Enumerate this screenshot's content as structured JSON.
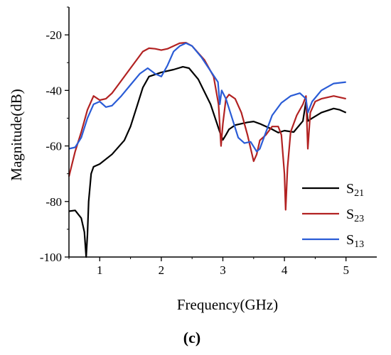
{
  "chart_data": {
    "type": "line",
    "xlabel": "Frequency(GHz)",
    "ylabel": "Magnitude(dB)",
    "panel_label": "(c)",
    "xlim": [
      0.5,
      5.5
    ],
    "ylim": [
      -100,
      -10
    ],
    "xticks": [
      1,
      2,
      3,
      4,
      5
    ],
    "yticks": [
      -100,
      -80,
      -60,
      -40,
      -20
    ],
    "grid": false,
    "legend_position": "bottom-right",
    "series": [
      {
        "name": "S21",
        "name_main": "S",
        "name_sub": "21",
        "color": "#000000",
        "points": [
          [
            0.5,
            -83.5
          ],
          [
            0.6,
            -83.2
          ],
          [
            0.7,
            -86
          ],
          [
            0.75,
            -91
          ],
          [
            0.78,
            -100
          ],
          [
            0.8,
            -92
          ],
          [
            0.82,
            -80
          ],
          [
            0.86,
            -70
          ],
          [
            0.9,
            -67.5
          ],
          [
            1.0,
            -66.5
          ],
          [
            1.2,
            -63
          ],
          [
            1.4,
            -58
          ],
          [
            1.5,
            -53
          ],
          [
            1.6,
            -46
          ],
          [
            1.7,
            -39
          ],
          [
            1.8,
            -35
          ],
          [
            2.0,
            -33.5
          ],
          [
            2.2,
            -32.5
          ],
          [
            2.35,
            -31.5
          ],
          [
            2.45,
            -32
          ],
          [
            2.6,
            -36
          ],
          [
            2.8,
            -45
          ],
          [
            2.95,
            -55
          ],
          [
            3.0,
            -57.8
          ],
          [
            3.05,
            -56
          ],
          [
            3.1,
            -54
          ],
          [
            3.2,
            -52.5
          ],
          [
            3.4,
            -51.5
          ],
          [
            3.5,
            -51.2
          ],
          [
            3.6,
            -52
          ],
          [
            3.8,
            -54
          ],
          [
            3.9,
            -55.2
          ],
          [
            4.0,
            -54.5
          ],
          [
            4.15,
            -55
          ],
          [
            4.3,
            -51
          ],
          [
            4.35,
            -44
          ],
          [
            4.38,
            -51
          ],
          [
            4.45,
            -50
          ],
          [
            4.6,
            -48
          ],
          [
            4.8,
            -46.5
          ],
          [
            4.9,
            -47
          ],
          [
            5.0,
            -48
          ]
        ]
      },
      {
        "name": "S23",
        "name_main": "S",
        "name_sub": "23",
        "color": "#b22222",
        "points": [
          [
            0.5,
            -71
          ],
          [
            0.6,
            -62
          ],
          [
            0.7,
            -55
          ],
          [
            0.8,
            -47
          ],
          [
            0.9,
            -42
          ],
          [
            1.0,
            -43.5
          ],
          [
            1.1,
            -43
          ],
          [
            1.2,
            -41
          ],
          [
            1.3,
            -38
          ],
          [
            1.5,
            -32
          ],
          [
            1.7,
            -26
          ],
          [
            1.8,
            -24.8
          ],
          [
            1.9,
            -25
          ],
          [
            2.0,
            -25.5
          ],
          [
            2.1,
            -25
          ],
          [
            2.3,
            -23
          ],
          [
            2.4,
            -22.8
          ],
          [
            2.5,
            -24
          ],
          [
            2.7,
            -29
          ],
          [
            2.85,
            -35
          ],
          [
            2.93,
            -45
          ],
          [
            2.97,
            -60
          ],
          [
            3.0,
            -52
          ],
          [
            3.05,
            -43
          ],
          [
            3.1,
            -41.5
          ],
          [
            3.2,
            -43
          ],
          [
            3.3,
            -48
          ],
          [
            3.4,
            -56
          ],
          [
            3.5,
            -65.5
          ],
          [
            3.55,
            -63
          ],
          [
            3.6,
            -58
          ],
          [
            3.7,
            -56
          ],
          [
            3.8,
            -53
          ],
          [
            3.9,
            -53
          ],
          [
            3.95,
            -56
          ],
          [
            4.0,
            -70
          ],
          [
            4.02,
            -83
          ],
          [
            4.05,
            -68
          ],
          [
            4.1,
            -55
          ],
          [
            4.2,
            -49
          ],
          [
            4.3,
            -45
          ],
          [
            4.35,
            -42
          ],
          [
            4.38,
            -61
          ],
          [
            4.42,
            -48
          ],
          [
            4.5,
            -44
          ],
          [
            4.6,
            -43
          ],
          [
            4.8,
            -42
          ],
          [
            5.0,
            -43
          ]
        ]
      },
      {
        "name": "S13",
        "name_main": "S",
        "name_sub": "13",
        "color": "#2a5cd6",
        "points": [
          [
            0.5,
            -61
          ],
          [
            0.6,
            -60.5
          ],
          [
            0.7,
            -57
          ],
          [
            0.8,
            -50
          ],
          [
            0.9,
            -45
          ],
          [
            1.0,
            -44
          ],
          [
            1.1,
            -46
          ],
          [
            1.2,
            -45.5
          ],
          [
            1.35,
            -42
          ],
          [
            1.5,
            -38
          ],
          [
            1.65,
            -34
          ],
          [
            1.78,
            -32
          ],
          [
            1.9,
            -34
          ],
          [
            2.0,
            -35
          ],
          [
            2.1,
            -31
          ],
          [
            2.2,
            -26
          ],
          [
            2.3,
            -24
          ],
          [
            2.4,
            -23
          ],
          [
            2.5,
            -24
          ],
          [
            2.65,
            -28
          ],
          [
            2.8,
            -33
          ],
          [
            2.92,
            -37
          ],
          [
            2.95,
            -45
          ],
          [
            2.98,
            -40
          ],
          [
            3.05,
            -43
          ],
          [
            3.15,
            -50
          ],
          [
            3.25,
            -57
          ],
          [
            3.35,
            -59
          ],
          [
            3.45,
            -58.5
          ],
          [
            3.55,
            -62
          ],
          [
            3.6,
            -61
          ],
          [
            3.7,
            -55
          ],
          [
            3.8,
            -49
          ],
          [
            3.95,
            -44.5
          ],
          [
            4.1,
            -42
          ],
          [
            4.25,
            -41
          ],
          [
            4.35,
            -43
          ],
          [
            4.38,
            -48
          ],
          [
            4.45,
            -44
          ],
          [
            4.6,
            -40
          ],
          [
            4.8,
            -37.5
          ],
          [
            5.0,
            -37
          ]
        ]
      }
    ]
  }
}
